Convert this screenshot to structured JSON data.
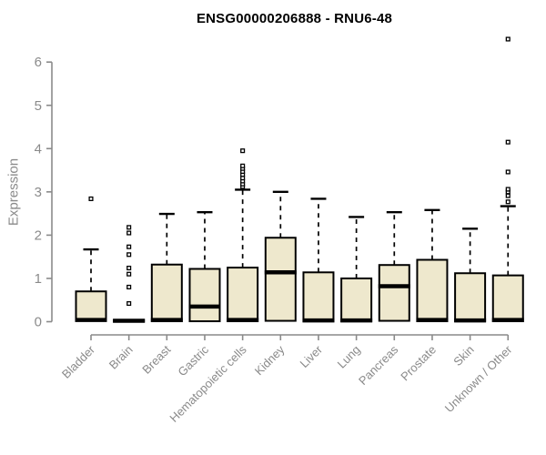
{
  "chart_data": {
    "type": "boxplot",
    "title": "ENSG00000206888 - RNU6-48",
    "ylabel": "Expression",
    "xlabel": "",
    "ylim": [
      0,
      6.6
    ],
    "yticks": [
      0,
      1,
      2,
      3,
      4,
      5,
      6
    ],
    "grid": false,
    "legend": "none",
    "colors": {
      "box_fill": "#EEE8CD",
      "box_border": "#000000",
      "median": "#000000",
      "whisker": "#000000",
      "outlier": "#000000",
      "axis": "#8a8a8a",
      "tick_label": "#8a8a8a",
      "title": "#000000"
    },
    "categories": [
      "Bladder",
      "Brain",
      "Breast",
      "Gastric",
      "Hematopoietic cells",
      "Kidney",
      "Liver",
      "Lung",
      "Pancreas",
      "Prostate",
      "Skin",
      "Unknown / Other"
    ],
    "boxes": [
      {
        "label": "Bladder",
        "q1": 0.02,
        "median": 0.04,
        "q3": 0.7,
        "whisker_low": 0,
        "whisker_high": 1.67,
        "outliers": [
          2.84
        ]
      },
      {
        "label": "Brain",
        "q1": 0.0,
        "median": 0.02,
        "q3": 0.04,
        "whisker_low": 0,
        "whisker_high": 0.04,
        "outliers": [
          0.42,
          0.8,
          1.1,
          1.24,
          1.55,
          1.73,
          2.05,
          2.18
        ]
      },
      {
        "label": "Breast",
        "q1": 0.01,
        "median": 0.04,
        "q3": 1.32,
        "whisker_low": 0,
        "whisker_high": 2.49,
        "outliers": []
      },
      {
        "label": "Gastric",
        "q1": 0.01,
        "median": 0.35,
        "q3": 1.22,
        "whisker_low": 0,
        "whisker_high": 2.53,
        "outliers": []
      },
      {
        "label": "Hematopoietic cells",
        "q1": 0.01,
        "median": 0.04,
        "q3": 1.25,
        "whisker_low": 0,
        "whisker_high": 3.05,
        "outliers": [
          3.12,
          3.18,
          3.25,
          3.32,
          3.4,
          3.47,
          3.54,
          3.6,
          3.95
        ]
      },
      {
        "label": "Kidney",
        "q1": 0.02,
        "median": 1.14,
        "q3": 1.94,
        "whisker_low": 0,
        "whisker_high": 3.0,
        "outliers": []
      },
      {
        "label": "Liver",
        "q1": 0.01,
        "median": 0.03,
        "q3": 1.14,
        "whisker_low": 0,
        "whisker_high": 2.84,
        "outliers": []
      },
      {
        "label": "Lung",
        "q1": 0.01,
        "median": 0.03,
        "q3": 1.0,
        "whisker_low": 0,
        "whisker_high": 2.42,
        "outliers": []
      },
      {
        "label": "Pancreas",
        "q1": 0.02,
        "median": 0.82,
        "q3": 1.31,
        "whisker_low": 0,
        "whisker_high": 2.53,
        "outliers": []
      },
      {
        "label": "Prostate",
        "q1": 0.01,
        "median": 0.04,
        "q3": 1.43,
        "whisker_low": 0,
        "whisker_high": 2.58,
        "outliers": []
      },
      {
        "label": "Skin",
        "q1": 0.01,
        "median": 0.03,
        "q3": 1.12,
        "whisker_low": 0,
        "whisker_high": 2.15,
        "outliers": []
      },
      {
        "label": "Unknown / Other",
        "q1": 0.01,
        "median": 0.04,
        "q3": 1.07,
        "whisker_low": 0,
        "whisker_high": 2.67,
        "outliers": [
          2.77,
          2.91,
          3.0,
          3.06,
          3.46,
          4.15,
          6.53
        ]
      }
    ]
  }
}
